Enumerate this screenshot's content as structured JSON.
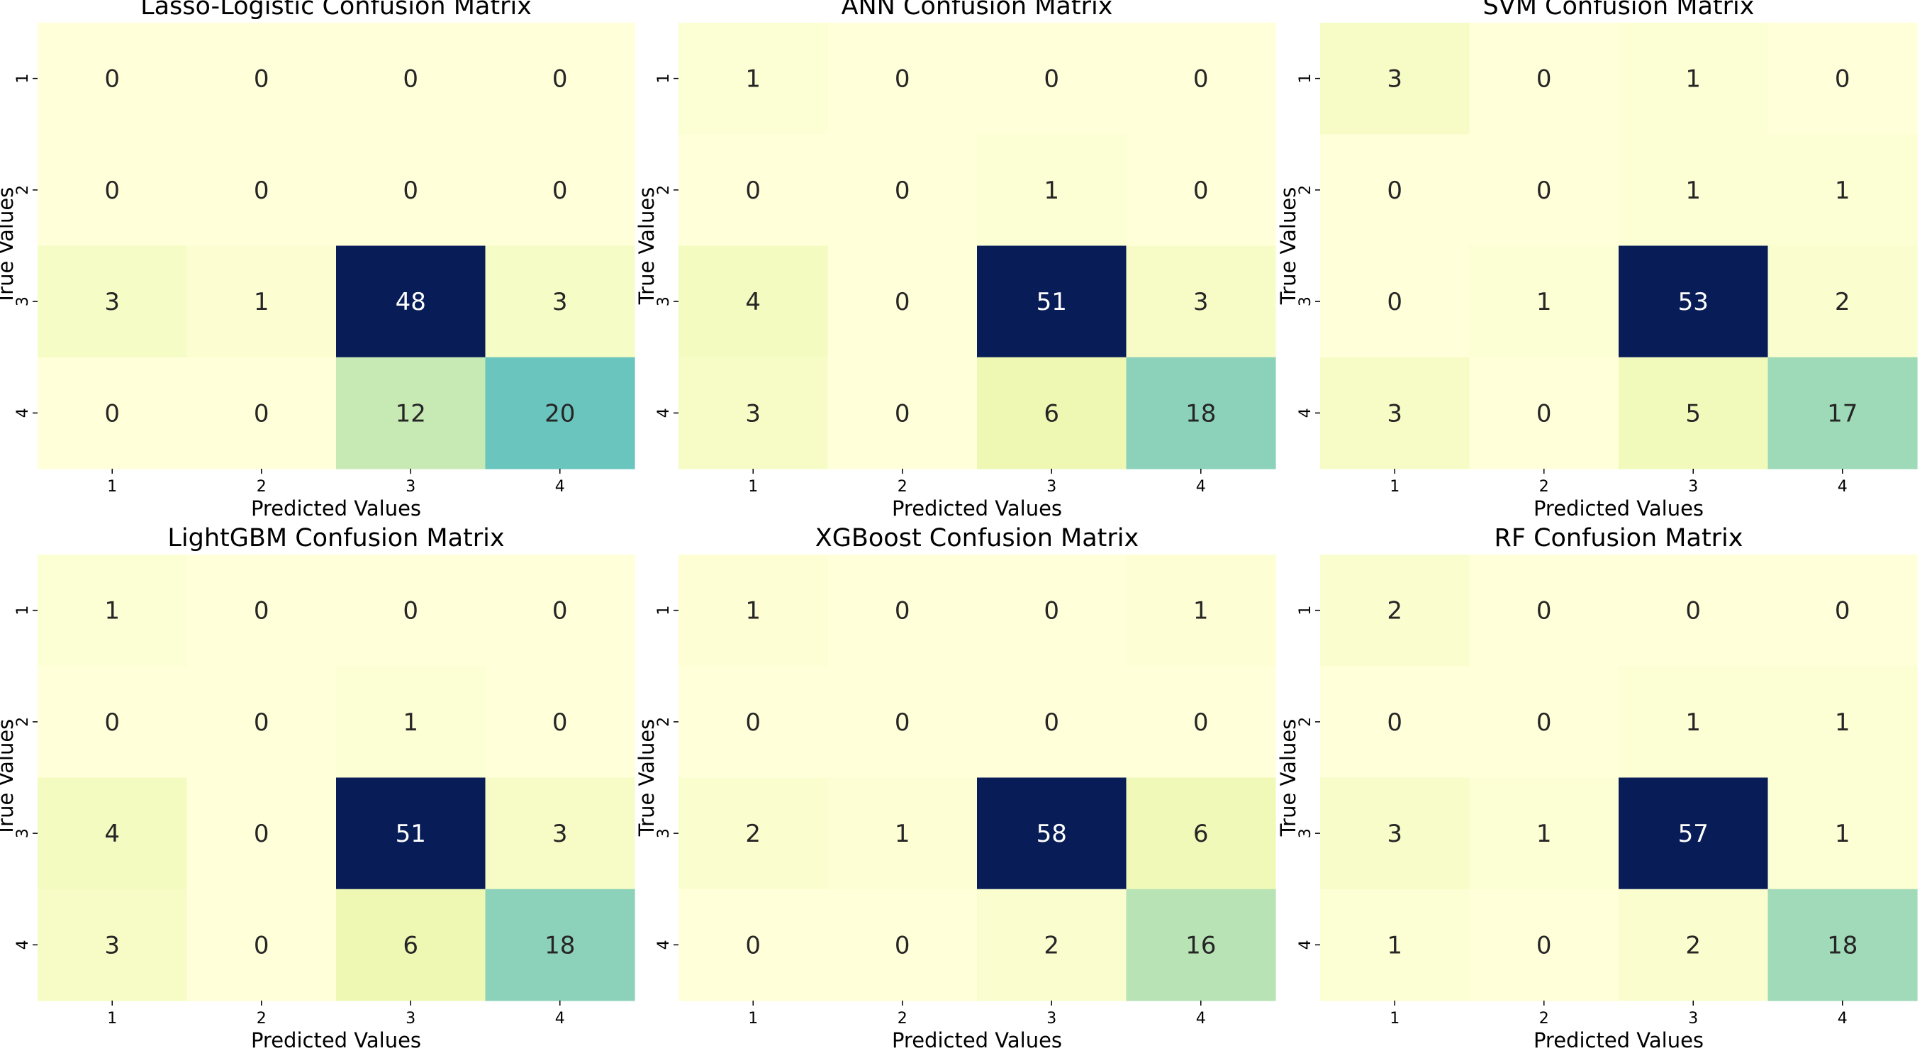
{
  "chart_data": [
    {
      "type": "heatmap",
      "title": "Lasso-Logistic Confusion Matrix",
      "xlabel": "Predicted Values",
      "ylabel": "True Values",
      "x_ticks": [
        "1",
        "2",
        "3",
        "4"
      ],
      "y_ticks": [
        "1",
        "2",
        "3",
        "4"
      ],
      "matrix": [
        [
          0,
          0,
          0,
          0
        ],
        [
          0,
          0,
          0,
          0
        ],
        [
          3,
          1,
          48,
          3
        ],
        [
          0,
          0,
          12,
          20
        ]
      ]
    },
    {
      "type": "heatmap",
      "title": "ANN Confusion Matrix",
      "xlabel": "Predicted Values",
      "ylabel": "True Values",
      "x_ticks": [
        "1",
        "2",
        "3",
        "4"
      ],
      "y_ticks": [
        "1",
        "2",
        "3",
        "4"
      ],
      "matrix": [
        [
          1,
          0,
          0,
          0
        ],
        [
          0,
          0,
          1,
          0
        ],
        [
          4,
          0,
          51,
          3
        ],
        [
          3,
          0,
          6,
          18
        ]
      ]
    },
    {
      "type": "heatmap",
      "title": "SVM Confusion Matrix",
      "xlabel": "Predicted Values",
      "ylabel": "True Values",
      "x_ticks": [
        "1",
        "2",
        "3",
        "4"
      ],
      "y_ticks": [
        "1",
        "2",
        "3",
        "4"
      ],
      "matrix": [
        [
          3,
          0,
          1,
          0
        ],
        [
          0,
          0,
          1,
          1
        ],
        [
          0,
          1,
          53,
          2
        ],
        [
          3,
          0,
          5,
          17
        ]
      ]
    },
    {
      "type": "heatmap",
      "title": "LightGBM Confusion Matrix",
      "xlabel": "Predicted Values",
      "ylabel": "True Values",
      "x_ticks": [
        "1",
        "2",
        "3",
        "4"
      ],
      "y_ticks": [
        "1",
        "2",
        "3",
        "4"
      ],
      "matrix": [
        [
          1,
          0,
          0,
          0
        ],
        [
          0,
          0,
          1,
          0
        ],
        [
          4,
          0,
          51,
          3
        ],
        [
          3,
          0,
          6,
          18
        ]
      ]
    },
    {
      "type": "heatmap",
      "title": "XGBoost Confusion Matrix",
      "xlabel": "Predicted Values",
      "ylabel": "True Values",
      "x_ticks": [
        "1",
        "2",
        "3",
        "4"
      ],
      "y_ticks": [
        "1",
        "2",
        "3",
        "4"
      ],
      "matrix": [
        [
          1,
          0,
          0,
          1
        ],
        [
          0,
          0,
          0,
          0
        ],
        [
          2,
          1,
          58,
          6
        ],
        [
          0,
          0,
          2,
          16
        ]
      ]
    },
    {
      "type": "heatmap",
      "title": "RF Confusion Matrix",
      "xlabel": "Predicted Values",
      "ylabel": "True Values",
      "x_ticks": [
        "1",
        "2",
        "3",
        "4"
      ],
      "y_ticks": [
        "1",
        "2",
        "3",
        "4"
      ],
      "matrix": [
        [
          2,
          0,
          0,
          0
        ],
        [
          0,
          0,
          1,
          1
        ],
        [
          3,
          1,
          57,
          1
        ],
        [
          1,
          0,
          2,
          18
        ]
      ]
    }
  ],
  "colormap": "YlGnBu",
  "colors": {
    "text_dark": "#262626",
    "text_light": "#ffffff",
    "axis_text": "#000000"
  }
}
